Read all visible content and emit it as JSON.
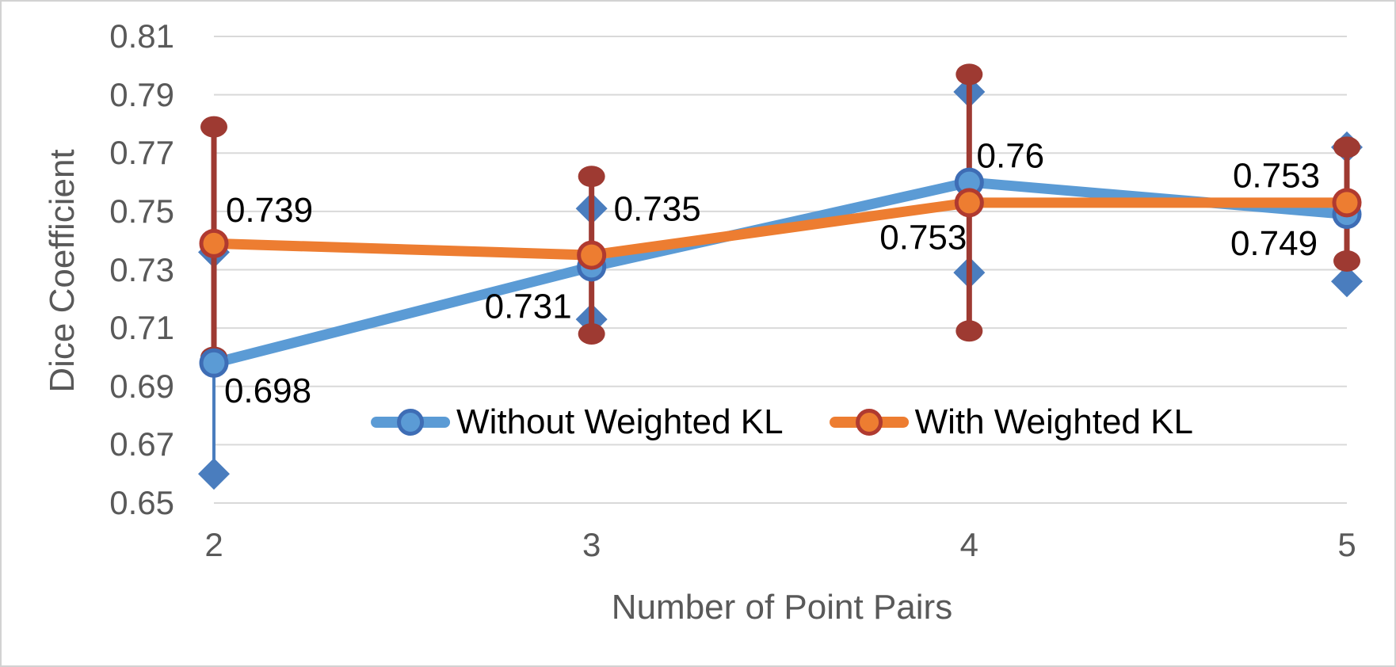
{
  "chart_data": {
    "type": "line",
    "title": "",
    "xlabel": "Number of Point Pairs",
    "ylabel": "Dice Coefficient",
    "categories": [
      2,
      3,
      4,
      5
    ],
    "ylim": [
      0.65,
      0.81
    ],
    "ytick_step": 0.02,
    "yticks": [
      0.65,
      0.67,
      0.69,
      0.71,
      0.73,
      0.75,
      0.77,
      0.79,
      0.81
    ],
    "grid": true,
    "legend_position": "inside-bottom-center",
    "colors": {
      "gridline": "#D9D9D9",
      "axis_text": "#595959",
      "data_label_text": "#000000",
      "background": "#FFFFFF"
    },
    "series": [
      {
        "name": "Without Weighted KL",
        "color": "#5B9BD5",
        "marker": "circle",
        "marker_outline": "#3E6DB5",
        "error_color": "#4A7DBE",
        "error_cap": "diamond",
        "values": [
          0.698,
          0.731,
          0.76,
          0.749
        ],
        "error_low": [
          0.66,
          0.713,
          0.729,
          0.726
        ],
        "error_high": [
          0.736,
          0.751,
          0.791,
          0.772
        ],
        "labels": [
          "0.698",
          "0.731",
          "0.76",
          "0.749"
        ],
        "label_offsets": [
          [
            68,
            35
          ],
          [
            -80,
            50
          ],
          [
            52,
            -33
          ],
          [
            -92,
            37
          ]
        ]
      },
      {
        "name": "With Weighted KL",
        "color": "#ED7D31",
        "marker": "circle",
        "marker_outline": "#B03A30",
        "error_color": "#9E3A32",
        "error_cap": "round-dot",
        "values": [
          0.739,
          0.735,
          0.753,
          0.753
        ],
        "error_low": [
          0.7,
          0.708,
          0.709,
          0.733
        ],
        "error_high": [
          0.779,
          0.762,
          0.797,
          0.772
        ],
        "labels": [
          "0.739",
          "0.735",
          "0.753",
          "0.753"
        ],
        "label_offsets": [
          [
            70,
            -42
          ],
          [
            83,
            -58
          ],
          [
            -58,
            44
          ],
          [
            -89,
            -34
          ]
        ]
      }
    ]
  }
}
